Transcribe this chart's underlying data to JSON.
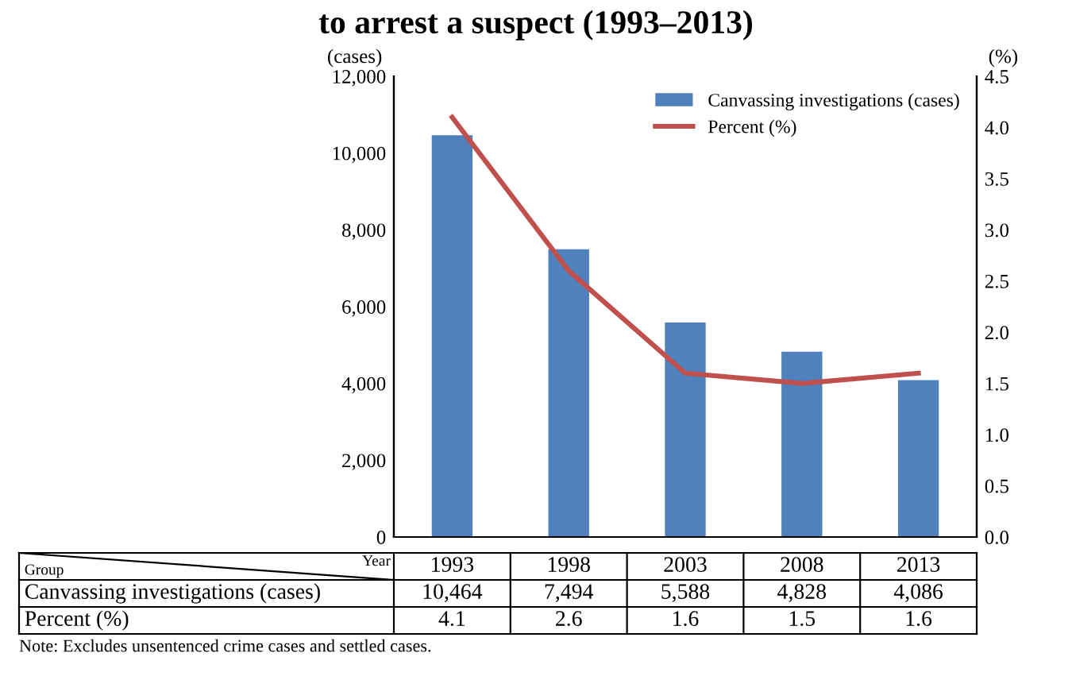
{
  "chart_data": {
    "type": "bar",
    "title": "to arrest a suspect (1993–2013)",
    "categories": [
      "1993",
      "1998",
      "2003",
      "2008",
      "2013"
    ],
    "series": [
      {
        "name": "Canvassing investigations (cases)",
        "color": "#4f81bd",
        "values": [
          10464,
          7494,
          5588,
          4828,
          4086
        ],
        "value_labels": [
          "10,464",
          "7,494",
          "5,588",
          "4,828",
          "4,086"
        ]
      },
      {
        "name": "Percent (%)",
        "type": "line",
        "axis": "y2",
        "color": "#c0504d",
        "values": [
          4.1,
          2.6,
          1.6,
          1.5,
          1.6
        ],
        "value_labels": [
          "4.1",
          "2.6",
          "1.6",
          "1.5",
          "1.6"
        ]
      }
    ],
    "ylabel": "(cases)",
    "y2label": "(%)",
    "ylim": [
      0,
      12000
    ],
    "yticks": [
      0,
      {
        "value": 2000,
        "label": "2,000"
      },
      {
        "value": 4000,
        "label": "4,000"
      },
      {
        "value": 6000,
        "label": "6,000"
      },
      {
        "value": 8000,
        "label": "8,000"
      },
      {
        "value": 10000,
        "label": "10,000"
      },
      {
        "value": 12000,
        "label": "12,000"
      }
    ],
    "y2lim": [
      0,
      4.5
    ],
    "y2ticks": [
      {
        "value": 0,
        "label": "0.0"
      },
      0.5,
      {
        "value": 1,
        "label": "1.0"
      },
      1.5,
      {
        "value": 2,
        "label": "2.0"
      },
      2.5,
      {
        "value": 3,
        "label": "3.0"
      },
      3.5,
      {
        "value": 4,
        "label": "4.0"
      },
      4.5
    ],
    "legend": "top right",
    "grid": false,
    "marker": "none",
    "line_style": "solid",
    "annotations": [
      "Year",
      "Group",
      "Note: Excludes unsentenced crime cases and settled cases."
    ]
  }
}
